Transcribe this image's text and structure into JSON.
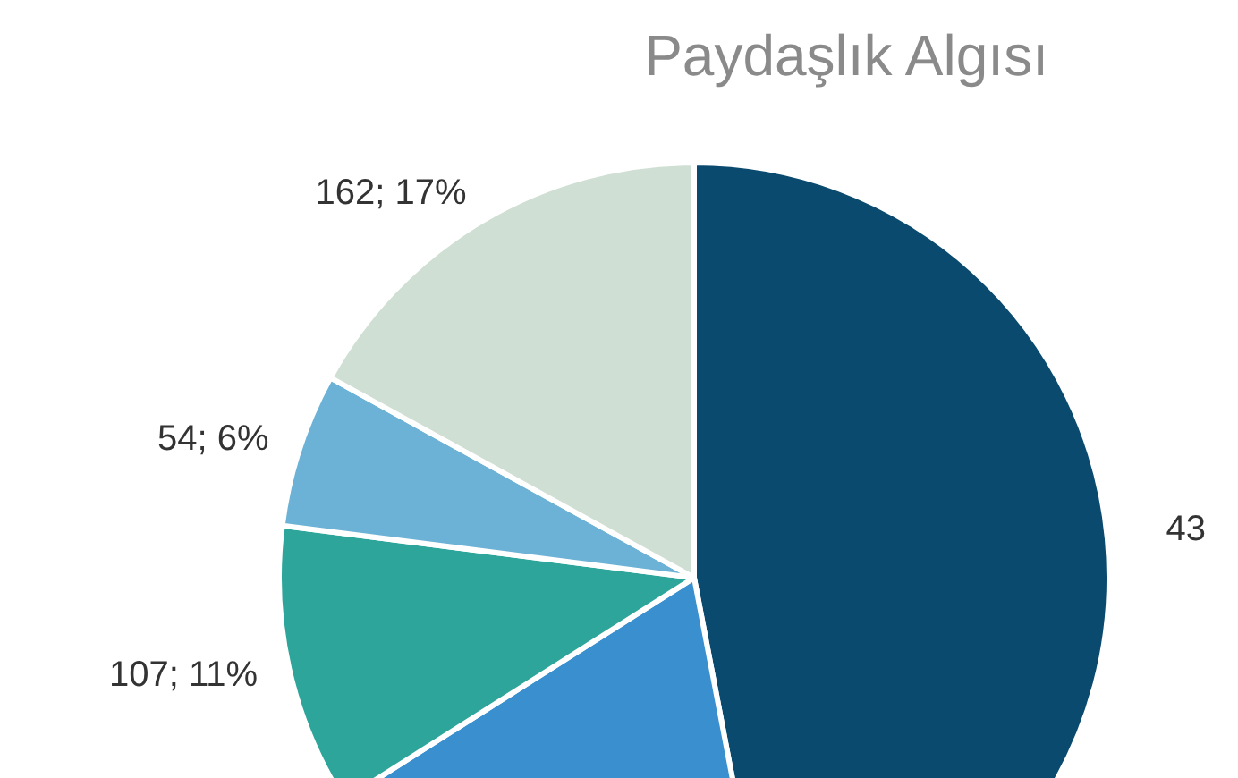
{
  "chart_data": {
    "type": "pie",
    "title": "Paydaşlık Algısı",
    "categories": [
      null,
      null,
      null,
      null,
      null
    ],
    "values": [
      47,
      19,
      11,
      6,
      17
    ],
    "colors": [
      "#0b4a6f",
      "#3a8fcf",
      "#2ea59a",
      "#6cb2d6",
      "#cfdfd4"
    ],
    "value_labels": [
      null,
      null,
      "107; 11%",
      "54; 6%",
      "162; 17%"
    ],
    "annotations": [
      "43"
    ]
  }
}
